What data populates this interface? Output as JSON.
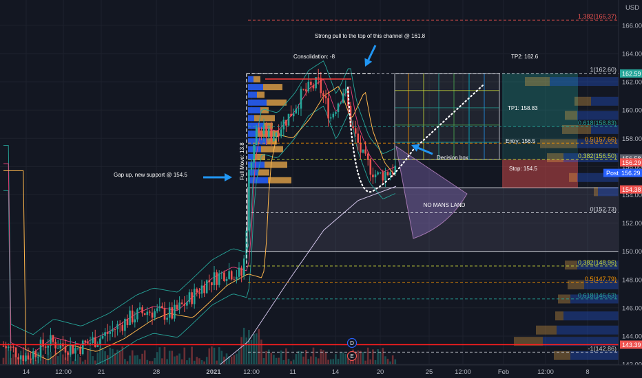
{
  "currency": "USD",
  "chart_data": {
    "type": "candlestick",
    "ylim": [
      141,
      167
    ],
    "y_ticks": [
      142,
      144,
      146,
      148,
      150,
      152,
      154,
      156,
      158,
      160,
      162,
      164,
      166
    ],
    "x_ticks": [
      "14",
      "12:00",
      "21",
      "28",
      "2021",
      "12:00",
      "11",
      "14",
      "20",
      "25",
      "12:00",
      "Feb",
      "12:00",
      "8"
    ],
    "price_tags": [
      {
        "value": 162.59,
        "label": "162.59",
        "color": "#26a69a"
      },
      {
        "value": 156.58,
        "label": "156.58",
        "color": "#5d606b"
      },
      {
        "value": 156.29,
        "label": "156.29",
        "color": "#ef5350"
      },
      {
        "value": 154.38,
        "label": "154.38",
        "color": "#ef5350"
      },
      {
        "value": 143.39,
        "label": "143.39",
        "color": "#ef5350"
      }
    ],
    "post_tag": {
      "label": "Post",
      "value": "156.29",
      "color": "#2962ff"
    },
    "fib_levels": [
      {
        "value": 166.37,
        "label": "1.382(166.37)",
        "color": "#ef5350"
      },
      {
        "value": 162.6,
        "label": "1(162.60)",
        "color": "#d1d4dc"
      },
      {
        "value": 158.83,
        "label": "0.618(158.83)",
        "color": "#26a69a"
      },
      {
        "value": 157.66,
        "label": "0.5(157.66)",
        "color": "#ff9800"
      },
      {
        "value": 156.5,
        "label": "0.382(156.50)",
        "color": "#cddc39"
      },
      {
        "value": 152.73,
        "label": "0(152.73)",
        "color": "#d1d4dc"
      },
      {
        "value": 148.96,
        "label": "0.382(148.96)",
        "color": "#cddc39"
      },
      {
        "value": 147.79,
        "label": "0.5(147.79)",
        "color": "#ff9800"
      },
      {
        "value": 146.63,
        "label": "0.618(146.63)",
        "color": "#26a69a"
      },
      {
        "value": 142.86,
        "label": "-1(142.86)",
        "color": "#d1d4dc"
      }
    ],
    "zones": {
      "tp2": {
        "label": "TP2: 162.6"
      },
      "tp1": {
        "label": "TP1: 158.83"
      },
      "entry": {
        "label": "Entry: 156.5"
      },
      "stop": {
        "label": "Stop: 154.5"
      }
    },
    "annotations": {
      "channel": "Strong pull to the top of this channel @ 161.8",
      "consolidation": "Consolidation: -8",
      "full_move": "Full Move: 13.8",
      "gap": "Gap up, new support @ 154.5",
      "decision": "Decision box",
      "no_mans": "NO MANS LAND"
    },
    "events": {
      "d": "D",
      "e": "E"
    },
    "red_line": 143.39
  }
}
